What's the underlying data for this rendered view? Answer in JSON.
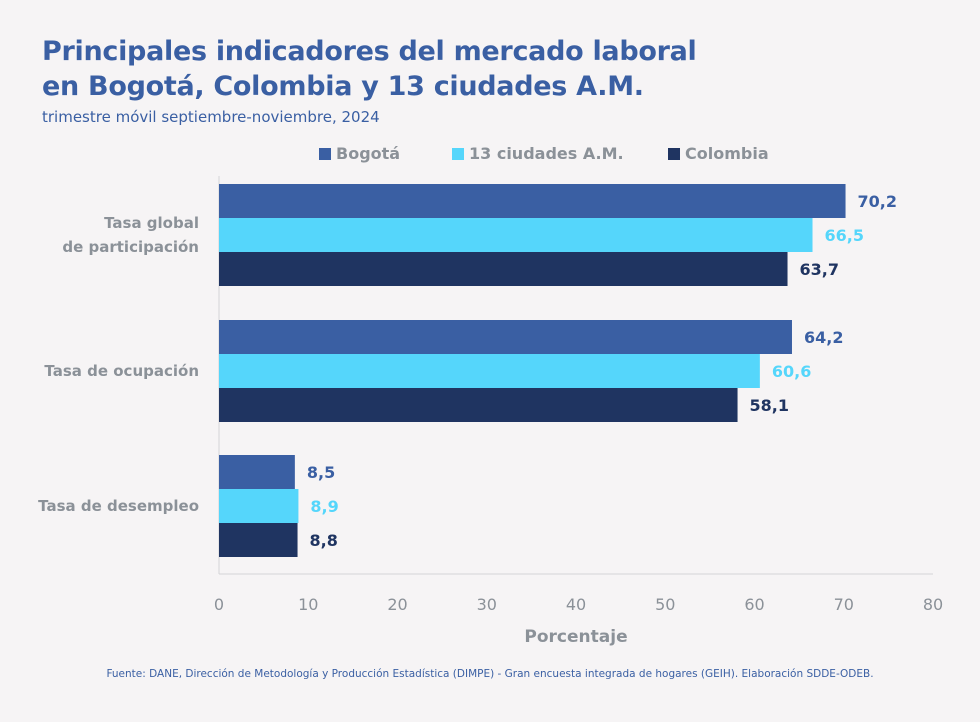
{
  "header": {
    "title_line1": "Principales indicadores del mercado laboral",
    "title_line2": "en Bogotá, Colombia y 13 ciudades A.M.",
    "subtitle": "trimestre móvil septiembre-noviembre, 2024"
  },
  "source": "Fuente: DANE, Dirección de Metodología y Producción Estadística (DIMPE) - Gran encuesta integrada de hogares (GEIH). Elaboración SDDE-ODEB.",
  "chart_data": {
    "type": "bar",
    "orientation": "horizontal",
    "title": "Principales indicadores del mercado laboral en Bogotá, Colombia y 13 ciudades A.M.",
    "subtitle": "trimestre móvil septiembre-noviembre, 2024",
    "xlabel": "Porcentaje",
    "ylabel": "",
    "xlim": [
      0,
      80
    ],
    "xticks": [
      0,
      10,
      20,
      30,
      40,
      50,
      60,
      70,
      80
    ],
    "xtick_labels": [
      "0",
      "10",
      "20",
      "30",
      "40",
      "50",
      "60",
      "70",
      "80"
    ],
    "grid": false,
    "legend_position": "top",
    "categories": [
      {
        "label_lines": [
          "Tasa global",
          "de participación"
        ]
      },
      {
        "label_lines": [
          "Tasa de ocupación"
        ]
      },
      {
        "label_lines": [
          "Tasa de desempleo"
        ]
      }
    ],
    "series": [
      {
        "name": "Bogotá",
        "color": "#3a5fa3",
        "label_color": "#3a5fa3",
        "values": [
          70.2,
          64.2,
          8.5
        ],
        "labels": [
          "70,2",
          "64,2",
          "8,5"
        ]
      },
      {
        "name": "13 ciudades A.M.",
        "color": "#55d6fb",
        "label_color": "#55d6fb",
        "values": [
          66.5,
          60.6,
          8.9
        ],
        "labels": [
          "66,5",
          "60,6",
          "8,9"
        ]
      },
      {
        "name": "Colombia",
        "color": "#1f3461",
        "label_color": "#1f3461",
        "values": [
          63.7,
          58.1,
          8.8
        ],
        "labels": [
          "63,7",
          "58,1",
          "8,8"
        ]
      }
    ]
  }
}
